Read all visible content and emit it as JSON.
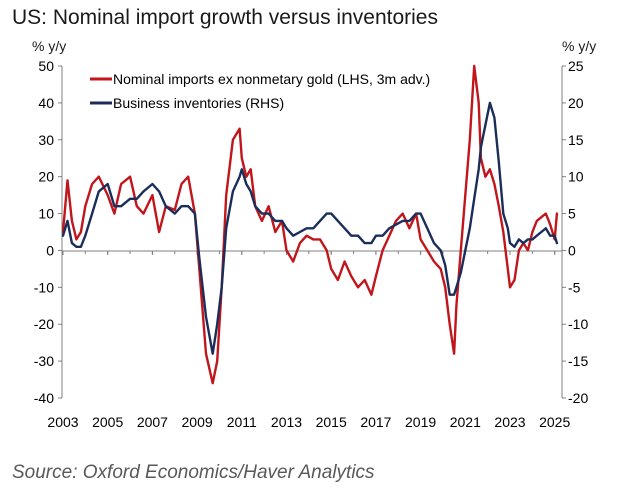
{
  "title": "US: Nominal import growth versus inventories",
  "left_unit": "% y/y",
  "right_unit": "% y/y",
  "source": "Source: Oxford Economics/Haver Analytics",
  "chart_data": {
    "type": "line",
    "title": "US: Nominal import growth versus inventories",
    "ylabel_left": "% y/y",
    "ylabel_right": "% y/y",
    "ylim_left": [
      -40,
      50
    ],
    "ylim_right": [
      -20,
      25
    ],
    "left_ticks": [
      "50",
      "40",
      "30",
      "20",
      "10",
      "0",
      "-10",
      "-20",
      "-30",
      "-40"
    ],
    "right_ticks": [
      "25",
      "20",
      "15",
      "10",
      "5",
      "0",
      "-5",
      "-10",
      "-15",
      "-20"
    ],
    "x_ticks": [
      "2003",
      "2005",
      "2007",
      "2009",
      "2011",
      "2013",
      "2015",
      "2017",
      "2019",
      "2021",
      "2023",
      "2025"
    ],
    "xlim": [
      2003,
      2025.5
    ],
    "grid": false,
    "legend_position": "top-left",
    "series": [
      {
        "name": "Nominal imports ex nonmetary gold (LHS, 3m adv.)",
        "axis": "left",
        "color": "#c0161c",
        "x": [
          2003.0,
          2003.2,
          2003.4,
          2003.6,
          2003.8,
          2004.0,
          2004.3,
          2004.6,
          2005.0,
          2005.3,
          2005.6,
          2006.0,
          2006.3,
          2006.6,
          2007.0,
          2007.3,
          2007.6,
          2008.0,
          2008.3,
          2008.6,
          2008.9,
          2009.1,
          2009.4,
          2009.7,
          2009.9,
          2010.1,
          2010.3,
          2010.6,
          2010.9,
          2011.0,
          2011.2,
          2011.4,
          2011.6,
          2011.9,
          2012.2,
          2012.5,
          2012.8,
          2013.0,
          2013.3,
          2013.6,
          2013.9,
          2014.2,
          2014.5,
          2014.8,
          2015.0,
          2015.3,
          2015.6,
          2015.9,
          2016.2,
          2016.5,
          2016.8,
          2017.0,
          2017.3,
          2017.6,
          2017.9,
          2018.2,
          2018.5,
          2018.8,
          2019.0,
          2019.3,
          2019.6,
          2019.9,
          2020.1,
          2020.3,
          2020.5,
          2020.6,
          2020.8,
          2021.0,
          2021.2,
          2021.4,
          2021.6,
          2021.7,
          2021.9,
          2022.1,
          2022.3,
          2022.5,
          2022.7,
          2022.9,
          2023.0,
          2023.2,
          2023.4,
          2023.6,
          2023.8,
          2024.0,
          2024.2,
          2024.4,
          2024.6,
          2024.8,
          2025.0,
          2025.1
        ],
        "values": [
          5,
          19,
          8,
          3,
          5,
          12,
          18,
          20,
          15,
          10,
          18,
          20,
          12,
          10,
          15,
          5,
          12,
          11,
          18,
          20,
          10,
          -5,
          -28,
          -36,
          -30,
          -10,
          15,
          30,
          33,
          25,
          20,
          22,
          12,
          8,
          12,
          5,
          8,
          0,
          -3,
          2,
          4,
          3,
          3,
          0,
          -5,
          -8,
          -3,
          -7,
          -10,
          -8,
          -12,
          -7,
          0,
          4,
          8,
          10,
          6,
          10,
          3,
          0,
          -3,
          -5,
          -10,
          -20,
          -28,
          -15,
          0,
          15,
          30,
          50,
          40,
          25,
          20,
          22,
          18,
          12,
          5,
          -5,
          -10,
          -8,
          0,
          2,
          0,
          5,
          8,
          9,
          10,
          7,
          3,
          10
        ]
      },
      {
        "name": "Business inventories (RHS)",
        "axis": "right",
        "color": "#1b2e5a",
        "x": [
          2003.0,
          2003.2,
          2003.4,
          2003.6,
          2003.8,
          2004.0,
          2004.3,
          2004.6,
          2005.0,
          2005.3,
          2005.6,
          2006.0,
          2006.3,
          2006.6,
          2007.0,
          2007.3,
          2007.6,
          2008.0,
          2008.3,
          2008.6,
          2008.9,
          2009.1,
          2009.4,
          2009.7,
          2009.9,
          2010.1,
          2010.3,
          2010.6,
          2010.9,
          2011.0,
          2011.2,
          2011.4,
          2011.6,
          2011.9,
          2012.2,
          2012.5,
          2012.8,
          2013.0,
          2013.3,
          2013.6,
          2013.9,
          2014.2,
          2014.5,
          2014.8,
          2015.0,
          2015.3,
          2015.6,
          2015.9,
          2016.2,
          2016.5,
          2016.8,
          2017.0,
          2017.3,
          2017.6,
          2017.9,
          2018.2,
          2018.5,
          2018.8,
          2019.0,
          2019.3,
          2019.6,
          2019.9,
          2020.1,
          2020.3,
          2020.5,
          2020.6,
          2020.8,
          2021.0,
          2021.2,
          2021.4,
          2021.6,
          2021.7,
          2021.9,
          2022.1,
          2022.3,
          2022.5,
          2022.7,
          2022.9,
          2023.0,
          2023.2,
          2023.4,
          2023.6,
          2023.8,
          2024.0,
          2024.2,
          2024.4,
          2024.6,
          2024.8,
          2025.0,
          2025.1
        ],
        "values": [
          2,
          4,
          1,
          0.5,
          0.5,
          2,
          5,
          8,
          9,
          6,
          6,
          7,
          7,
          8,
          9,
          8,
          6,
          5,
          6,
          6,
          5,
          -1,
          -9,
          -14,
          -10,
          -5,
          3,
          8,
          10,
          11,
          9,
          8,
          6,
          5,
          5,
          4,
          4,
          3,
          2,
          2.5,
          3,
          3,
          4,
          5,
          5,
          4,
          3,
          2,
          2,
          1,
          1,
          2,
          2,
          3,
          3.5,
          4,
          4,
          5,
          5,
          3,
          1,
          0,
          -2,
          -6,
          -6,
          -5,
          -3,
          0,
          3,
          7,
          11,
          14,
          17,
          20,
          18,
          12,
          5,
          3,
          1,
          0.5,
          1.5,
          1,
          1.5,
          1.5,
          2,
          2.5,
          3,
          2,
          2,
          1
        ]
      }
    ]
  }
}
